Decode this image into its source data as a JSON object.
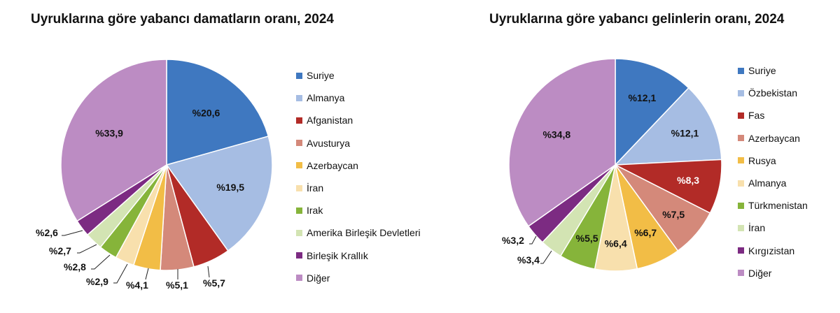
{
  "chart_data": [
    {
      "type": "pie",
      "title": "Uyruklarına göre yabancı damatların oranı, 2024",
      "legend_position": "right",
      "slices": [
        {
          "name": "Suriye",
          "value": 20.6,
          "label": "%20,6",
          "color": "#3f78c0"
        },
        {
          "name": "Almanya",
          "value": 19.5,
          "label": "%19,5",
          "color": "#a6bde3"
        },
        {
          "name": "Afganistan",
          "value": 5.7,
          "label": "%5,7",
          "color": "#b22b27"
        },
        {
          "name": "Avusturya",
          "value": 5.1,
          "label": "%5,1",
          "color": "#d4897a"
        },
        {
          "name": "Azerbaycan",
          "value": 4.1,
          "label": "%4,1",
          "color": "#f2bd46"
        },
        {
          "name": "İran",
          "value": 2.9,
          "label": "%2,9",
          "color": "#f8e0ad"
        },
        {
          "name": "Irak",
          "value": 2.8,
          "label": "%2,8",
          "color": "#86b43a"
        },
        {
          "name": "Amerika Birleşik Devletleri",
          "value": 2.7,
          "label": "%2,7",
          "color": "#d3e4b3"
        },
        {
          "name": "Birleşik Krallık",
          "value": 2.6,
          "label": "%2,6",
          "color": "#7c2b82"
        },
        {
          "name": "Diğer",
          "value": 33.9,
          "label": "%33,9",
          "color": "#bc8cc3"
        }
      ]
    },
    {
      "type": "pie",
      "title": "Uyruklarına göre yabancı gelinlerin oranı, 2024",
      "legend_position": "right",
      "slices": [
        {
          "name": "Suriye",
          "value": 12.1,
          "label": "%12,1",
          "color": "#3f78c0"
        },
        {
          "name": "Özbekistan",
          "value": 12.1,
          "label": "%12,1",
          "color": "#a6bde3"
        },
        {
          "name": "Fas",
          "value": 8.3,
          "label": "%8,3",
          "color": "#b22b27"
        },
        {
          "name": "Azerbaycan",
          "value": 7.5,
          "label": "%7,5",
          "color": "#d4897a"
        },
        {
          "name": "Rusya",
          "value": 6.7,
          "label": "%6,7",
          "color": "#f2bd46"
        },
        {
          "name": "Almanya",
          "value": 6.4,
          "label": "%6,4",
          "color": "#f8e0ad"
        },
        {
          "name": "Türkmenistan",
          "value": 5.5,
          "label": "%5,5",
          "color": "#86b43a"
        },
        {
          "name": "İran",
          "value": 3.4,
          "label": "%3,4",
          "color": "#d3e4b3"
        },
        {
          "name": "Kırgızistan",
          "value": 3.2,
          "label": "%3,2",
          "color": "#7c2b82"
        },
        {
          "name": "Diğer",
          "value": 34.8,
          "label": "%34,8",
          "color": "#bc8cc3"
        }
      ]
    }
  ]
}
